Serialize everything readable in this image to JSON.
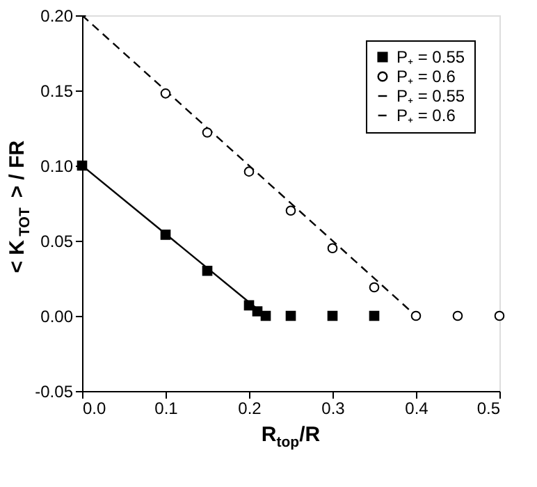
{
  "chart_data": {
    "type": "scatter",
    "xlabel": "R$_{top}$/R",
    "ylabel": "< K$_{TOT}$ > / FR",
    "xlim": [
      0.0,
      0.5
    ],
    "ylim": [
      -0.05,
      0.2
    ],
    "xticks": [
      {
        "value": 0,
        "label": "0.0"
      },
      0.1,
      0.2,
      0.3,
      0.4,
      0.5
    ],
    "yticks": [
      {
        "value": -0.05,
        "label": "-0.05"
      },
      {
        "value": 0,
        "label": "0.00"
      },
      0.05,
      {
        "value": 0.1,
        "label": "0.10"
      },
      0.15,
      {
        "value": 0.2,
        "label": "0.20"
      }
    ],
    "grid": false,
    "legend": "top right",
    "series": [
      {
        "name": "P₊ = 0.55",
        "marker": "square",
        "color": "#000000",
        "x": [
          0.0,
          0.1,
          0.15,
          0.2,
          0.21,
          0.22,
          0.25,
          0.3,
          0.35
        ],
        "values": [
          0.1,
          0.054,
          0.03,
          0.007,
          0.003,
          0.0,
          0.0,
          0.0,
          0.0
        ]
      },
      {
        "name": "P₊ = 0.6",
        "marker": "circle",
        "color": "#000000",
        "x": [
          0.1,
          0.15,
          0.2,
          0.25,
          0.3,
          0.35,
          0.4,
          0.45,
          0.5
        ],
        "values": [
          0.148,
          0.122,
          0.096,
          0.07,
          0.045,
          0.019,
          0.0,
          0.0,
          0.0
        ]
      },
      {
        "name": "P₊ = 0.55",
        "type": "line",
        "line_style": "solid",
        "color": "#000000",
        "x": [
          0.0,
          0.22
        ],
        "values": [
          0.1,
          0.0
        ]
      },
      {
        "name": "P₊ = 0.6",
        "type": "line",
        "line_style": "dashed",
        "color": "#000000",
        "x": [
          0.0,
          0.4
        ],
        "values": [
          0.2,
          0.0
        ]
      }
    ]
  }
}
